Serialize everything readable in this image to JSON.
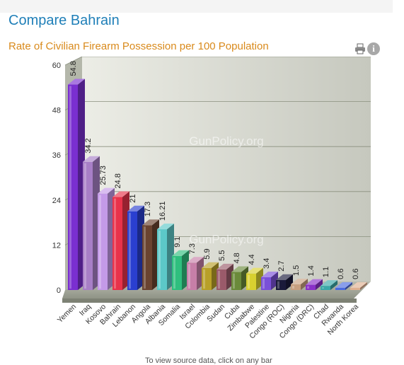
{
  "header": {
    "title": "Compare Bahrain"
  },
  "toolbar": {
    "print_icon": "print-icon",
    "info_icon": "info-icon",
    "info_glyph": "i"
  },
  "footnote": "To view source data, click on any bar",
  "chart_data": {
    "type": "bar",
    "title": "Rate of Civilian Firearm Possession per 100 Population",
    "xlabel": "",
    "ylabel": "",
    "ylim": [
      0,
      60
    ],
    "yticks": [
      0,
      12,
      24,
      36,
      48,
      60
    ],
    "grid": true,
    "watermark": "GunPolicy.org",
    "categories": [
      "Yemen",
      "Iraq",
      "Kosovo",
      "Bahrain",
      "Lebanon",
      "Angola",
      "Albania",
      "Somalia",
      "Israel",
      "Colombia",
      "Sudan",
      "Cuba",
      "Zimbabwe",
      "Palestine",
      "Congo (ROC)",
      "Nigeria",
      "Congo (DRC)",
      "Chad",
      "Rwanda",
      "North Korea"
    ],
    "values": [
      54.8,
      34.2,
      25.73,
      24.8,
      21,
      17.3,
      16.21,
      9.1,
      7.3,
      5.9,
      5.5,
      4.8,
      4.4,
      3.4,
      2.7,
      1.5,
      1.4,
      1.1,
      0.6,
      0.6
    ],
    "value_labels": [
      "54.8",
      "34.2",
      "25.73",
      "24.8",
      "21",
      "17.3",
      "16.21",
      "9.1",
      "7.3",
      "5.9",
      "5.5",
      "4.8",
      "4.4",
      "3.4",
      "2.7",
      "1.5",
      "1.4",
      "1.1",
      "0.6",
      "0.6"
    ],
    "colors": [
      "#7a2fd0",
      "#a87fc7",
      "#c49ae8",
      "#e8324a",
      "#2a3fd0",
      "#6a4330",
      "#5cc8c8",
      "#2fbf7e",
      "#c77fa8",
      "#b8a028",
      "#9a5a6a",
      "#6a8a3a",
      "#d8d030",
      "#7a50d8",
      "#1a1a3a",
      "#c8a080",
      "#8a30c8",
      "#3aa8a8",
      "#4a6ae0",
      "#e0b090"
    ]
  }
}
